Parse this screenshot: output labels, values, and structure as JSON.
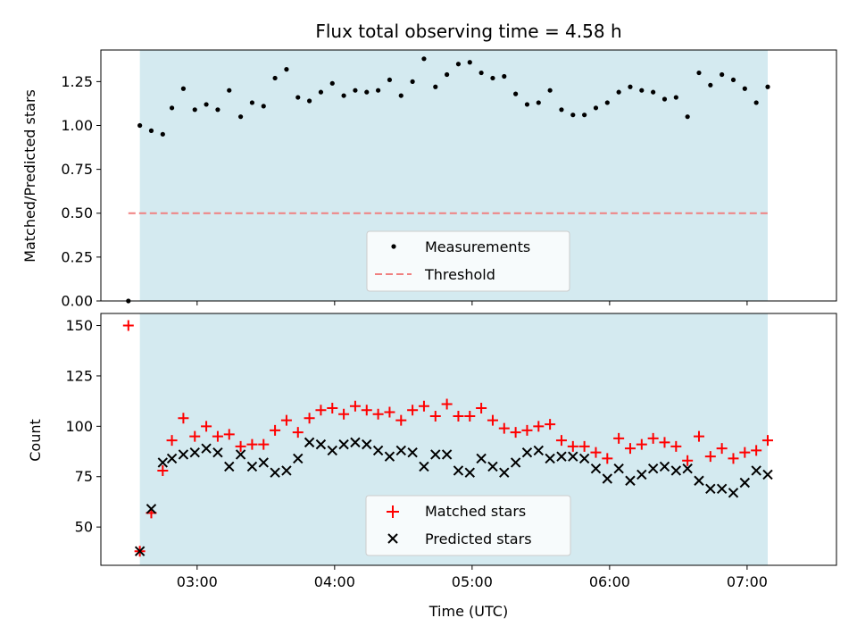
{
  "chart_data": [
    {
      "type": "scatter",
      "title": "Flux total observing time = 4.58 h",
      "xlabel": "",
      "ylabel": "Matched/Predicted stars",
      "ylim": [
        0,
        1.43
      ],
      "xlim": [
        "02:18",
        "07:39"
      ],
      "yticks": [
        "0.00",
        "0.25",
        "0.50",
        "0.75",
        "1.00",
        "1.25"
      ],
      "shaded_span": [
        "02:35",
        "07:09"
      ],
      "shade_color": "#d4eaf0",
      "threshold": {
        "name": "Threshold",
        "value": 0.5,
        "from": "02:30",
        "to": "07:09",
        "color": "#f08080"
      },
      "legend": "lower-center",
      "series": [
        {
          "name": "Measurements",
          "marker": "dot",
          "color": "#000000",
          "points": [
            [
              "02:30",
              0.0
            ],
            [
              "02:35",
              1.0
            ],
            [
              "02:40",
              0.97
            ],
            [
              "02:45",
              0.95
            ],
            [
              "02:49",
              1.1
            ],
            [
              "02:54",
              1.21
            ],
            [
              "02:59",
              1.09
            ],
            [
              "03:04",
              1.12
            ],
            [
              "03:09",
              1.09
            ],
            [
              "03:14",
              1.2
            ],
            [
              "03:19",
              1.05
            ],
            [
              "03:24",
              1.13
            ],
            [
              "03:29",
              1.11
            ],
            [
              "03:34",
              1.27
            ],
            [
              "03:39",
              1.32
            ],
            [
              "03:44",
              1.16
            ],
            [
              "03:49",
              1.14
            ],
            [
              "03:54",
              1.19
            ],
            [
              "03:59",
              1.24
            ],
            [
              "04:04",
              1.17
            ],
            [
              "04:09",
              1.2
            ],
            [
              "04:14",
              1.19
            ],
            [
              "04:19",
              1.2
            ],
            [
              "04:24",
              1.26
            ],
            [
              "04:29",
              1.17
            ],
            [
              "04:34",
              1.25
            ],
            [
              "04:39",
              1.38
            ],
            [
              "04:44",
              1.22
            ],
            [
              "04:49",
              1.29
            ],
            [
              "04:54",
              1.35
            ],
            [
              "04:59",
              1.36
            ],
            [
              "05:04",
              1.3
            ],
            [
              "05:09",
              1.27
            ],
            [
              "05:14",
              1.28
            ],
            [
              "05:19",
              1.18
            ],
            [
              "05:24",
              1.12
            ],
            [
              "05:29",
              1.13
            ],
            [
              "05:34",
              1.2
            ],
            [
              "05:39",
              1.09
            ],
            [
              "05:44",
              1.06
            ],
            [
              "05:49",
              1.06
            ],
            [
              "05:54",
              1.1
            ],
            [
              "05:59",
              1.13
            ],
            [
              "06:04",
              1.19
            ],
            [
              "06:09",
              1.22
            ],
            [
              "06:14",
              1.2
            ],
            [
              "06:19",
              1.19
            ],
            [
              "06:24",
              1.15
            ],
            [
              "06:29",
              1.16
            ],
            [
              "06:34",
              1.05
            ],
            [
              "06:39",
              1.3
            ],
            [
              "06:44",
              1.23
            ],
            [
              "06:49",
              1.29
            ],
            [
              "06:54",
              1.26
            ],
            [
              "06:59",
              1.21
            ],
            [
              "07:04",
              1.13
            ],
            [
              "07:09",
              1.22
            ]
          ]
        }
      ]
    },
    {
      "type": "scatter",
      "title": "",
      "xlabel": "Time (UTC)",
      "ylabel": "Count",
      "ylim": [
        31,
        156
      ],
      "xlim": [
        "02:18",
        "07:39"
      ],
      "yticks": [
        "50",
        "75",
        "100",
        "125",
        "150"
      ],
      "xticks": [
        "03:00",
        "04:00",
        "05:00",
        "06:00",
        "07:00"
      ],
      "shaded_span": [
        "02:35",
        "07:09"
      ],
      "legend": "lower-center",
      "series": [
        {
          "name": "Matched stars",
          "marker": "plus",
          "color": "#ff0000",
          "points": [
            [
              "02:30",
              150
            ],
            [
              "02:35",
              38
            ],
            [
              "02:40",
              57
            ],
            [
              "02:45",
              78
            ],
            [
              "02:49",
              93
            ],
            [
              "02:54",
              104
            ],
            [
              "02:59",
              95
            ],
            [
              "03:04",
              100
            ],
            [
              "03:09",
              95
            ],
            [
              "03:14",
              96
            ],
            [
              "03:19",
              90
            ],
            [
              "03:24",
              91
            ],
            [
              "03:29",
              91
            ],
            [
              "03:34",
              98
            ],
            [
              "03:39",
              103
            ],
            [
              "03:44",
              97
            ],
            [
              "03:49",
              104
            ],
            [
              "03:54",
              108
            ],
            [
              "03:59",
              109
            ],
            [
              "04:04",
              106
            ],
            [
              "04:09",
              110
            ],
            [
              "04:14",
              108
            ],
            [
              "04:19",
              106
            ],
            [
              "04:24",
              107
            ],
            [
              "04:29",
              103
            ],
            [
              "04:34",
              108
            ],
            [
              "04:39",
              110
            ],
            [
              "04:44",
              105
            ],
            [
              "04:49",
              111
            ],
            [
              "04:54",
              105
            ],
            [
              "04:59",
              105
            ],
            [
              "05:04",
              109
            ],
            [
              "05:09",
              103
            ],
            [
              "05:14",
              99
            ],
            [
              "05:19",
              97
            ],
            [
              "05:24",
              98
            ],
            [
              "05:29",
              100
            ],
            [
              "05:34",
              101
            ],
            [
              "05:39",
              93
            ],
            [
              "05:44",
              90
            ],
            [
              "05:49",
              90
            ],
            [
              "05:54",
              87
            ],
            [
              "05:59",
              84
            ],
            [
              "06:04",
              94
            ],
            [
              "06:09",
              89
            ],
            [
              "06:14",
              91
            ],
            [
              "06:19",
              94
            ],
            [
              "06:24",
              92
            ],
            [
              "06:29",
              90
            ],
            [
              "06:34",
              83
            ],
            [
              "06:39",
              95
            ],
            [
              "06:44",
              85
            ],
            [
              "06:49",
              89
            ],
            [
              "06:54",
              84
            ],
            [
              "06:59",
              87
            ],
            [
              "07:04",
              88
            ],
            [
              "07:09",
              93
            ]
          ]
        },
        {
          "name": "Predicted stars",
          "marker": "x",
          "color": "#000000",
          "points": [
            [
              "02:35",
              38
            ],
            [
              "02:40",
              59
            ],
            [
              "02:45",
              82
            ],
            [
              "02:49",
              84
            ],
            [
              "02:54",
              86
            ],
            [
              "02:59",
              87
            ],
            [
              "03:04",
              89
            ],
            [
              "03:09",
              87
            ],
            [
              "03:14",
              80
            ],
            [
              "03:19",
              86
            ],
            [
              "03:24",
              80
            ],
            [
              "03:29",
              82
            ],
            [
              "03:34",
              77
            ],
            [
              "03:39",
              78
            ],
            [
              "03:44",
              84
            ],
            [
              "03:49",
              92
            ],
            [
              "03:54",
              91
            ],
            [
              "03:59",
              88
            ],
            [
              "04:04",
              91
            ],
            [
              "04:09",
              92
            ],
            [
              "04:14",
              91
            ],
            [
              "04:19",
              88
            ],
            [
              "04:24",
              85
            ],
            [
              "04:29",
              88
            ],
            [
              "04:34",
              87
            ],
            [
              "04:39",
              80
            ],
            [
              "04:44",
              86
            ],
            [
              "04:49",
              86
            ],
            [
              "04:54",
              78
            ],
            [
              "04:59",
              77
            ],
            [
              "05:04",
              84
            ],
            [
              "05:09",
              80
            ],
            [
              "05:14",
              77
            ],
            [
              "05:19",
              82
            ],
            [
              "05:24",
              87
            ],
            [
              "05:29",
              88
            ],
            [
              "05:34",
              84
            ],
            [
              "05:39",
              85
            ],
            [
              "05:44",
              85
            ],
            [
              "05:49",
              84
            ],
            [
              "05:54",
              79
            ],
            [
              "05:59",
              74
            ],
            [
              "06:04",
              79
            ],
            [
              "06:09",
              73
            ],
            [
              "06:14",
              76
            ],
            [
              "06:19",
              79
            ],
            [
              "06:24",
              80
            ],
            [
              "06:29",
              78
            ],
            [
              "06:34",
              79
            ],
            [
              "06:39",
              73
            ],
            [
              "06:44",
              69
            ],
            [
              "06:49",
              69
            ],
            [
              "06:54",
              67
            ],
            [
              "06:59",
              72
            ],
            [
              "07:04",
              78
            ],
            [
              "07:09",
              76
            ]
          ]
        }
      ]
    }
  ]
}
